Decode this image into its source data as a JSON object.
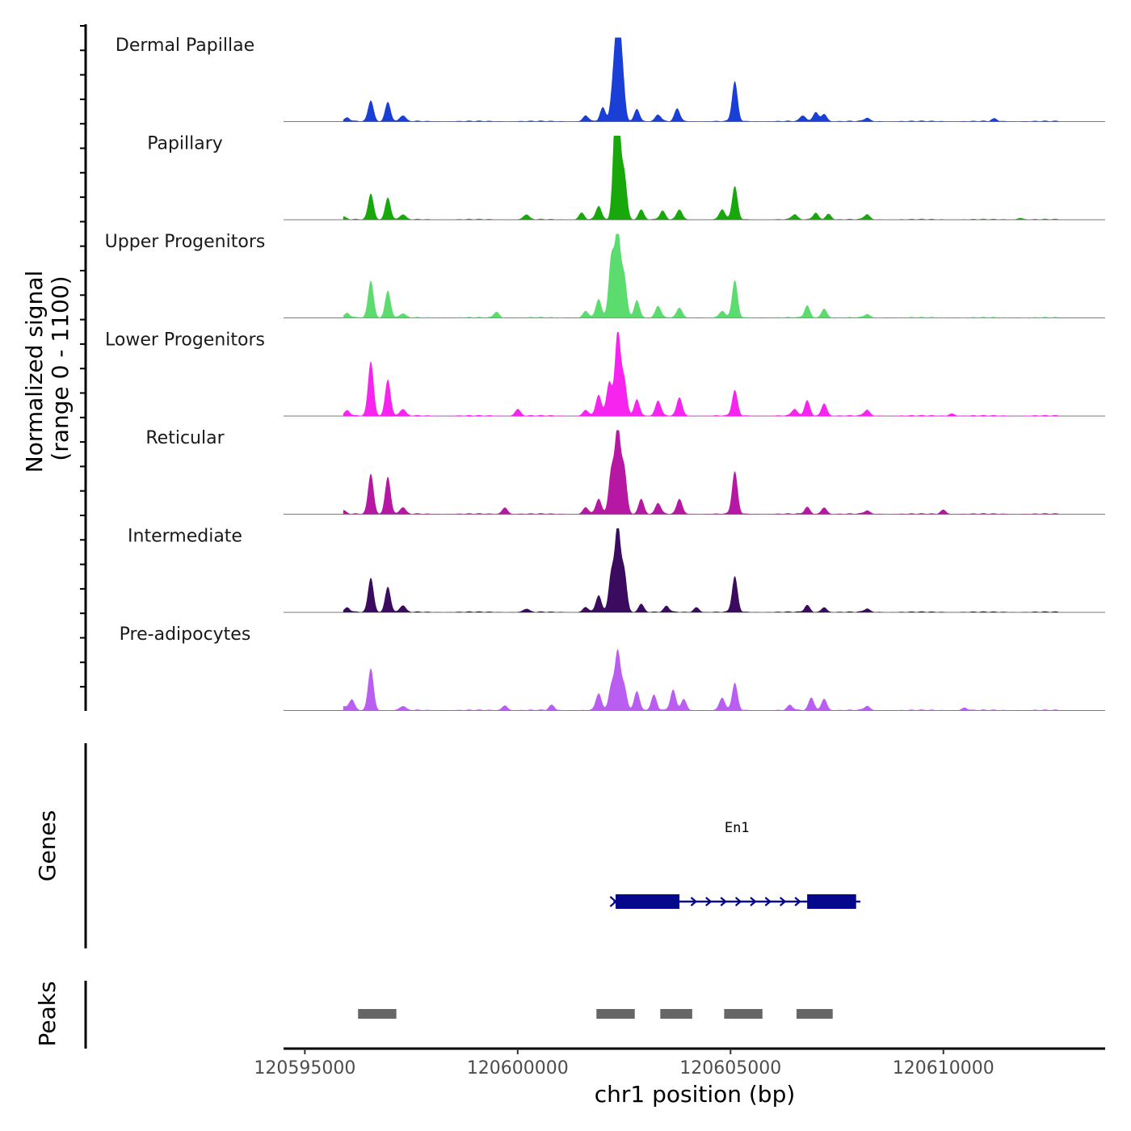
{
  "chart_data": {
    "type": "area",
    "y_axis_title": "Normalized signal",
    "y_axis_subtitle": "(range 0 - 1100)",
    "y_range": [
      0,
      1100
    ],
    "x_axis_title": "chr1 position (bp)",
    "x_range": [
      120594500,
      120613800
    ],
    "x_ticks": [
      120595000,
      120600000,
      120605000,
      120610000
    ],
    "x_tick_labels": [
      "120595000",
      "120600000",
      "120605000",
      "120610000"
    ],
    "signal_extent": [
      120595900,
      120612700
    ],
    "tracks": [
      {
        "name": "Dermal Papillae",
        "color": "#1a3fd6",
        "peaks": [
          [
            120596000,
            40
          ],
          [
            120596550,
            250
          ],
          [
            120596950,
            230
          ],
          [
            120597300,
            70
          ],
          [
            120601600,
            70
          ],
          [
            120602000,
            160
          ],
          [
            120602250,
            420
          ],
          [
            120602350,
            1000
          ],
          [
            120602450,
            560
          ],
          [
            120602800,
            150
          ],
          [
            120603300,
            80
          ],
          [
            120603750,
            150
          ],
          [
            120605100,
            470
          ],
          [
            120606700,
            70
          ],
          [
            120607000,
            110
          ],
          [
            120607200,
            90
          ],
          [
            120608200,
            40
          ],
          [
            120611200,
            30
          ]
        ]
      },
      {
        "name": "Papillary",
        "color": "#18a80b",
        "peaks": [
          [
            120595900,
            30
          ],
          [
            120596550,
            310
          ],
          [
            120596950,
            260
          ],
          [
            120597300,
            60
          ],
          [
            120600200,
            60
          ],
          [
            120601500,
            80
          ],
          [
            120601900,
            160
          ],
          [
            120602300,
            850
          ],
          [
            120602350,
            1000
          ],
          [
            120602500,
            540
          ],
          [
            120602900,
            120
          ],
          [
            120603400,
            100
          ],
          [
            120603800,
            120
          ],
          [
            120604800,
            120
          ],
          [
            120605100,
            390
          ],
          [
            120606500,
            60
          ],
          [
            120607000,
            80
          ],
          [
            120607300,
            70
          ],
          [
            120608200,
            60
          ],
          [
            120611800,
            20
          ]
        ]
      },
      {
        "name": "Upper Progenitors",
        "color": "#5cdc6e",
        "peaks": [
          [
            120596000,
            50
          ],
          [
            120596550,
            440
          ],
          [
            120596950,
            320
          ],
          [
            120597300,
            50
          ],
          [
            120599500,
            70
          ],
          [
            120601600,
            80
          ],
          [
            120601900,
            220
          ],
          [
            120602200,
            700
          ],
          [
            120602350,
            1000
          ],
          [
            120602500,
            480
          ],
          [
            120602800,
            210
          ],
          [
            120603300,
            140
          ],
          [
            120603800,
            120
          ],
          [
            120604800,
            80
          ],
          [
            120605100,
            440
          ],
          [
            120606800,
            140
          ],
          [
            120607200,
            110
          ],
          [
            120608200,
            40
          ]
        ]
      },
      {
        "name": "Lower Progenitors",
        "color": "#f624ee",
        "peaks": [
          [
            120596000,
            60
          ],
          [
            120596550,
            650
          ],
          [
            120596950,
            430
          ],
          [
            120597300,
            80
          ],
          [
            120600000,
            80
          ],
          [
            120601600,
            70
          ],
          [
            120601900,
            250
          ],
          [
            120602150,
            400
          ],
          [
            120602350,
            1000
          ],
          [
            120602500,
            420
          ],
          [
            120602800,
            200
          ],
          [
            120603300,
            180
          ],
          [
            120603800,
            220
          ],
          [
            120605100,
            300
          ],
          [
            120606500,
            80
          ],
          [
            120606800,
            180
          ],
          [
            120607200,
            150
          ],
          [
            120608200,
            70
          ],
          [
            120610200,
            30
          ]
        ]
      },
      {
        "name": "Reticular",
        "color": "#b618a4",
        "peaks": [
          [
            120595900,
            40
          ],
          [
            120596550,
            480
          ],
          [
            120596950,
            440
          ],
          [
            120597300,
            80
          ],
          [
            120599700,
            80
          ],
          [
            120601600,
            80
          ],
          [
            120601900,
            180
          ],
          [
            120602200,
            500
          ],
          [
            120602350,
            1000
          ],
          [
            120602500,
            530
          ],
          [
            120602900,
            180
          ],
          [
            120603300,
            130
          ],
          [
            120603800,
            180
          ],
          [
            120605100,
            500
          ],
          [
            120606800,
            80
          ],
          [
            120607200,
            80
          ],
          [
            120608200,
            40
          ],
          [
            120610000,
            50
          ]
        ]
      },
      {
        "name": "Intermediate",
        "color": "#3a0b5e",
        "peaks": [
          [
            120596000,
            50
          ],
          [
            120596550,
            410
          ],
          [
            120596950,
            300
          ],
          [
            120597300,
            80
          ],
          [
            120600200,
            40
          ],
          [
            120601600,
            60
          ],
          [
            120601900,
            200
          ],
          [
            120602200,
            450
          ],
          [
            120602350,
            1000
          ],
          [
            120602500,
            480
          ],
          [
            120602900,
            100
          ],
          [
            120603500,
            70
          ],
          [
            120604200,
            60
          ],
          [
            120605100,
            420
          ],
          [
            120606800,
            80
          ],
          [
            120607200,
            60
          ],
          [
            120608200,
            40
          ]
        ]
      },
      {
        "name": "Pre-adipocytes",
        "color": "#b95ef0",
        "peaks": [
          [
            120595900,
            40
          ],
          [
            120596100,
            130
          ],
          [
            120596550,
            500
          ],
          [
            120597300,
            50
          ],
          [
            120599700,
            60
          ],
          [
            120600800,
            60
          ],
          [
            120601900,
            200
          ],
          [
            120602200,
            280
          ],
          [
            120602350,
            690
          ],
          [
            120602500,
            280
          ],
          [
            120602800,
            230
          ],
          [
            120603200,
            180
          ],
          [
            120603650,
            240
          ],
          [
            120603900,
            130
          ],
          [
            120604800,
            150
          ],
          [
            120605100,
            320
          ],
          [
            120606400,
            60
          ],
          [
            120606900,
            150
          ],
          [
            120607200,
            140
          ],
          [
            120608200,
            50
          ],
          [
            120610500,
            30
          ]
        ]
      }
    ],
    "genes_panel_title": "Genes",
    "gene": {
      "name": "En1",
      "color": "#06088c",
      "start": 120602250,
      "end": 120608050,
      "exons": [
        [
          120602300,
          120603800
        ],
        [
          120606800,
          120607950
        ]
      ],
      "strand": "+"
    },
    "peaks_panel_title": "Peaks",
    "peak_color": "#666666",
    "peak_regions": [
      [
        120596250,
        120597150
      ],
      [
        120601850,
        120602750
      ],
      [
        120603350,
        120604100
      ],
      [
        120604850,
        120605750
      ],
      [
        120606550,
        120607400
      ]
    ]
  }
}
